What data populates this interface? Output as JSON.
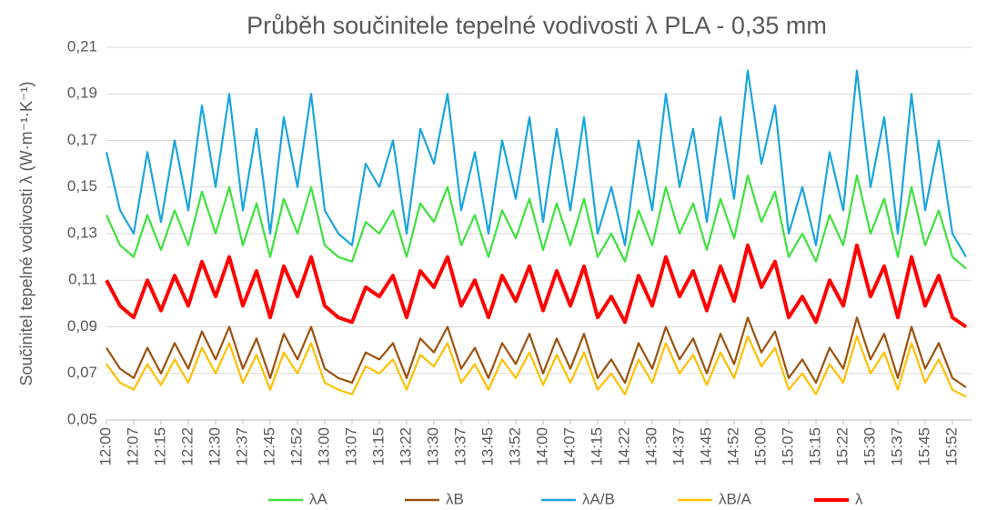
{
  "chart_data": {
    "type": "line",
    "title": "Průběh součinitele tepelné vodivosti λ PLA - 0,35 mm",
    "y_label": "Součinitel tepelné vodivosti λ (W·m⁻¹·K⁻¹)",
    "categories": [
      "12:00",
      null,
      "12:07",
      null,
      "12:15",
      null,
      "12:22",
      null,
      "12:30",
      null,
      "12:37",
      null,
      "12:45",
      null,
      "12:52",
      null,
      "13:00",
      null,
      "13:07",
      null,
      "13:15",
      null,
      "13:22",
      null,
      "13:30",
      null,
      "13:37",
      null,
      "13:45",
      null,
      "13:52",
      null,
      "14:00",
      null,
      "14:07",
      null,
      "14:15",
      null,
      "14:22",
      null,
      "14:30",
      null,
      "14:37",
      null,
      "14:45",
      null,
      "14:52",
      null,
      "15:00",
      null,
      "15:07",
      null,
      "15:15",
      null,
      "15:22",
      null,
      "15:30",
      null,
      "15:37",
      null,
      "15:45",
      null,
      "15:52",
      null
    ],
    "ylim": [
      0.05,
      0.21
    ],
    "yticks": [
      {
        "value": 0.05,
        "label": "0,05"
      },
      {
        "value": 0.07,
        "label": "0,07"
      },
      {
        "value": 0.09,
        "label": "0,09"
      },
      {
        "value": 0.11,
        "label": "0,11"
      },
      {
        "value": 0.13,
        "label": "0,13"
      },
      {
        "value": 0.15,
        "label": "0,15"
      },
      {
        "value": 0.17,
        "label": "0,17"
      },
      {
        "value": 0.19,
        "label": "0,19"
      },
      {
        "value": 0.21,
        "label": "0,21"
      }
    ],
    "grid": true,
    "legend": "bottom",
    "series": [
      {
        "name": "λA",
        "color": "#3de23d",
        "values": [
          0.138,
          0.125,
          0.12,
          0.138,
          0.123,
          0.14,
          0.125,
          0.148,
          0.13,
          0.15,
          0.125,
          0.143,
          0.12,
          0.145,
          0.13,
          0.15,
          0.125,
          0.12,
          0.118,
          0.135,
          0.13,
          0.14,
          0.12,
          0.143,
          0.135,
          0.15,
          0.125,
          0.138,
          0.12,
          0.14,
          0.128,
          0.145,
          0.123,
          0.143,
          0.125,
          0.145,
          0.12,
          0.13,
          0.118,
          0.14,
          0.125,
          0.15,
          0.13,
          0.143,
          0.123,
          0.145,
          0.128,
          0.155,
          0.135,
          0.148,
          0.12,
          0.13,
          0.118,
          0.138,
          0.125,
          0.155,
          0.13,
          0.145,
          0.12,
          0.15,
          0.125,
          0.14,
          0.12,
          0.115
        ]
      },
      {
        "name": "λB",
        "color": "#9c520e",
        "values": [
          0.081,
          0.072,
          0.068,
          0.081,
          0.07,
          0.083,
          0.072,
          0.088,
          0.076,
          0.09,
          0.072,
          0.085,
          0.068,
          0.087,
          0.076,
          0.09,
          0.072,
          0.068,
          0.066,
          0.079,
          0.076,
          0.083,
          0.068,
          0.085,
          0.079,
          0.09,
          0.072,
          0.081,
          0.068,
          0.083,
          0.074,
          0.087,
          0.07,
          0.085,
          0.072,
          0.087,
          0.068,
          0.076,
          0.066,
          0.083,
          0.072,
          0.09,
          0.076,
          0.085,
          0.07,
          0.087,
          0.074,
          0.094,
          0.079,
          0.088,
          0.068,
          0.076,
          0.066,
          0.081,
          0.072,
          0.094,
          0.076,
          0.087,
          0.068,
          0.09,
          0.072,
          0.083,
          0.068,
          0.064
        ]
      },
      {
        "name": "λA/B",
        "color": "#1ba5dd",
        "values": [
          0.165,
          0.14,
          0.13,
          0.165,
          0.135,
          0.17,
          0.14,
          0.185,
          0.15,
          0.19,
          0.14,
          0.175,
          0.13,
          0.18,
          0.15,
          0.19,
          0.14,
          0.13,
          0.125,
          0.16,
          0.15,
          0.17,
          0.13,
          0.175,
          0.16,
          0.19,
          0.14,
          0.165,
          0.13,
          0.17,
          0.145,
          0.18,
          0.135,
          0.175,
          0.14,
          0.18,
          0.13,
          0.15,
          0.125,
          0.17,
          0.14,
          0.19,
          0.15,
          0.175,
          0.135,
          0.18,
          0.145,
          0.2,
          0.16,
          0.185,
          0.13,
          0.15,
          0.125,
          0.165,
          0.14,
          0.2,
          0.15,
          0.18,
          0.13,
          0.19,
          0.14,
          0.17,
          0.13,
          0.12
        ]
      },
      {
        "name": "λB/A",
        "color": "#ffc000",
        "values": [
          0.074,
          0.066,
          0.063,
          0.074,
          0.065,
          0.076,
          0.066,
          0.081,
          0.07,
          0.083,
          0.066,
          0.078,
          0.063,
          0.079,
          0.07,
          0.083,
          0.066,
          0.063,
          0.061,
          0.073,
          0.07,
          0.076,
          0.063,
          0.078,
          0.073,
          0.083,
          0.066,
          0.074,
          0.063,
          0.076,
          0.068,
          0.079,
          0.065,
          0.078,
          0.066,
          0.079,
          0.063,
          0.07,
          0.061,
          0.076,
          0.066,
          0.083,
          0.07,
          0.078,
          0.065,
          0.079,
          0.068,
          0.086,
          0.073,
          0.081,
          0.063,
          0.07,
          0.061,
          0.074,
          0.066,
          0.086,
          0.07,
          0.079,
          0.063,
          0.083,
          0.066,
          0.076,
          0.063,
          0.06
        ]
      },
      {
        "name": "λ",
        "color": "#ff0000",
        "values": [
          0.11,
          0.099,
          0.094,
          0.11,
          0.097,
          0.112,
          0.099,
          0.118,
          0.103,
          0.12,
          0.099,
          0.114,
          0.094,
          0.116,
          0.103,
          0.12,
          0.099,
          0.094,
          0.092,
          0.107,
          0.103,
          0.112,
          0.094,
          0.114,
          0.107,
          0.12,
          0.099,
          0.11,
          0.094,
          0.112,
          0.101,
          0.116,
          0.097,
          0.114,
          0.099,
          0.116,
          0.094,
          0.103,
          0.092,
          0.112,
          0.099,
          0.12,
          0.103,
          0.114,
          0.097,
          0.116,
          0.101,
          0.125,
          0.107,
          0.118,
          0.094,
          0.103,
          0.092,
          0.11,
          0.099,
          0.125,
          0.103,
          0.116,
          0.094,
          0.12,
          0.099,
          0.112,
          0.094,
          0.09
        ]
      }
    ]
  }
}
